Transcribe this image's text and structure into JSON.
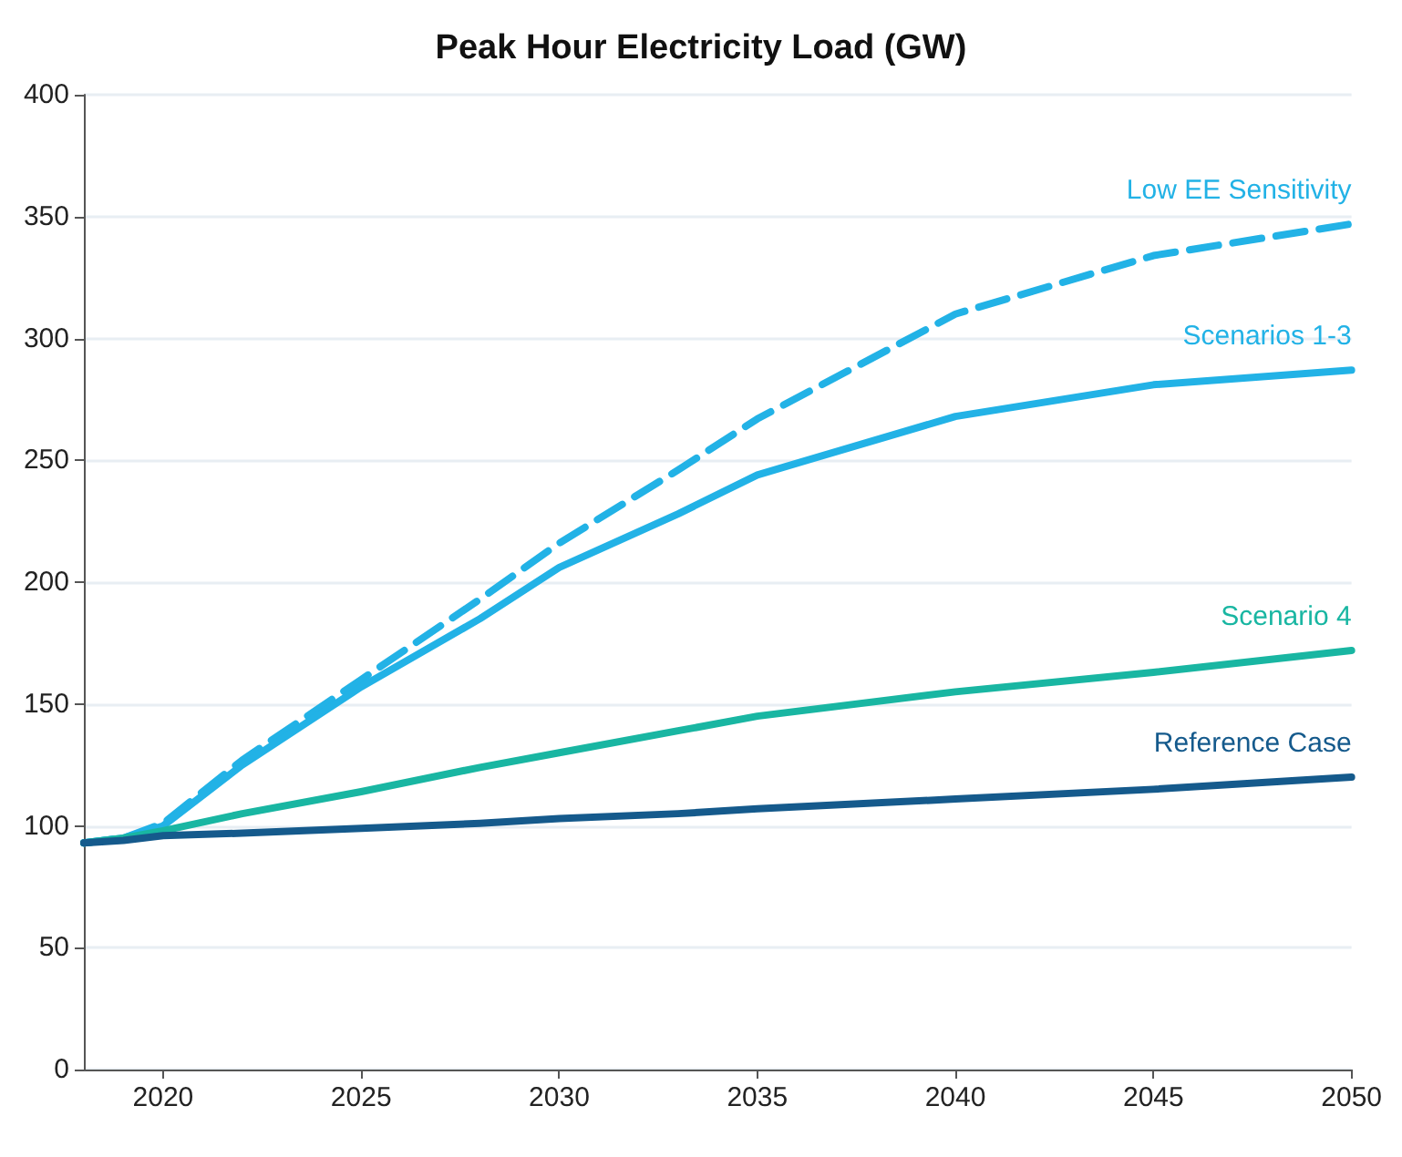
{
  "chart_data": {
    "type": "line",
    "title": "Peak Hour Electricity Load (GW)",
    "x": [
      2018,
      2019,
      2020,
      2022,
      2025,
      2028,
      2030,
      2033,
      2035,
      2040,
      2045,
      2050
    ],
    "series": [
      {
        "name": "Low EE Sensitivity",
        "color": "#22b2e6",
        "line_style": "dashed",
        "values": [
          93,
          95,
          101,
          127,
          160,
          193,
          216,
          246,
          267,
          310,
          334,
          347
        ]
      },
      {
        "name": "Scenarios 1-3",
        "color": "#22b2e6",
        "line_style": "solid",
        "values": [
          93,
          95,
          100,
          125,
          157,
          185,
          206,
          228,
          244,
          268,
          281,
          287
        ]
      },
      {
        "name": "Scenario 4",
        "color": "#19b6a2",
        "line_style": "solid",
        "values": [
          93,
          95,
          98,
          105,
          114,
          124,
          130,
          139,
          145,
          155,
          163,
          172
        ]
      },
      {
        "name": "Reference Case",
        "color": "#155a8c",
        "line_style": "solid",
        "values": [
          93,
          94,
          96,
          97,
          99,
          101,
          103,
          105,
          107,
          111,
          115,
          120
        ]
      }
    ],
    "xlim": [
      2018,
      2050
    ],
    "xticks": [
      2020,
      2025,
      2030,
      2035,
      2040,
      2045,
      2050
    ],
    "ylim": [
      0,
      400
    ],
    "yticks": [
      0,
      50,
      100,
      150,
      200,
      250,
      300,
      350,
      400
    ],
    "grid": "y",
    "legend": false,
    "marker": "none"
  }
}
